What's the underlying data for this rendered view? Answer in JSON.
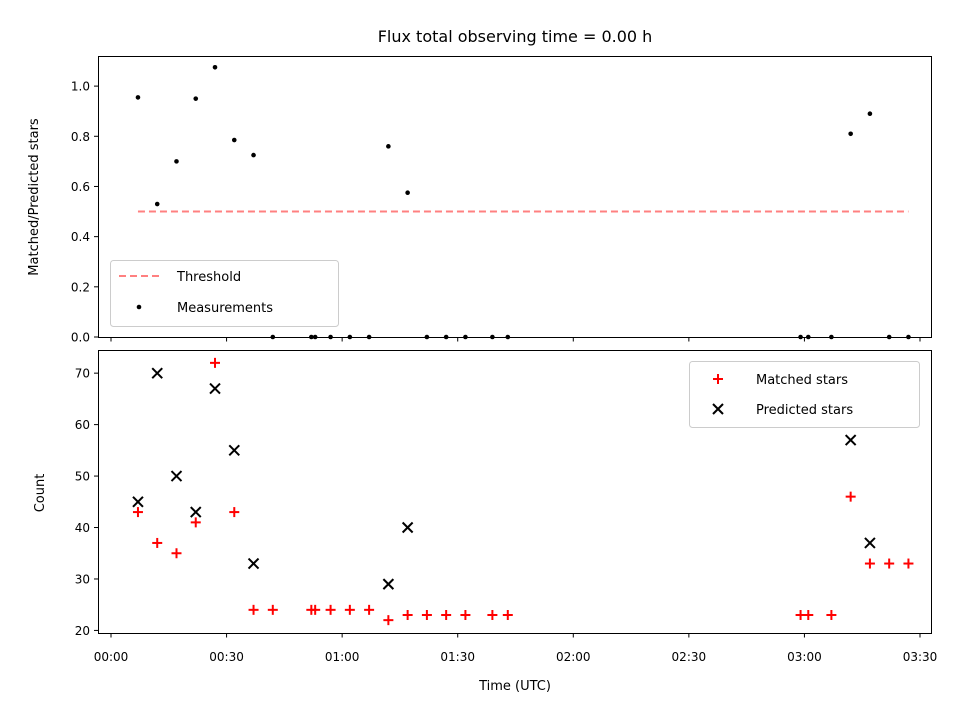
{
  "chart_data": [
    {
      "type": "scatter",
      "title": "Flux total observing time = 0.00 h",
      "xlabel": "",
      "ylabel": "Matched/Predicted stars",
      "xlim": [
        "00:00",
        "03:30"
      ],
      "ylim": [
        0,
        1.12
      ],
      "grid": false,
      "legend_position": "lower-left",
      "threshold": {
        "name": "Threshold",
        "value": 0.5,
        "x": [
          "00:07",
          "03:27"
        ],
        "color": "#ff8080",
        "style": "dashed"
      },
      "series": [
        {
          "name": "Measurements",
          "color": "#000000",
          "marker": "dot",
          "x": [
            "00:07",
            "00:12",
            "00:17",
            "00:22",
            "00:27",
            "00:32",
            "00:37",
            "00:42",
            "00:52",
            "00:53",
            "00:57",
            "01:02",
            "01:07",
            "01:12",
            "01:17",
            "01:22",
            "01:27",
            "01:32",
            "01:39",
            "01:43",
            "02:59",
            "03:01",
            "03:07",
            "03:12",
            "03:17",
            "03:22",
            "03:27"
          ],
          "y": [
            0.955,
            0.53,
            0.7,
            0.95,
            1.075,
            0.785,
            0.725,
            0.0,
            0.0,
            0.0,
            0.0,
            0.0,
            0.0,
            0.76,
            0.575,
            0.0,
            0.0,
            0.0,
            0.0,
            0.0,
            0.0,
            0.0,
            0.0,
            0.81,
            0.89,
            0.0,
            0.0
          ]
        }
      ]
    },
    {
      "type": "scatter",
      "title": "",
      "xlabel": "Time (UTC)",
      "ylabel": "Count",
      "xlim": [
        "00:00",
        "03:30"
      ],
      "ylim": [
        19.5,
        74.5
      ],
      "grid": false,
      "legend_position": "top-right",
      "series": [
        {
          "name": "Matched stars",
          "color": "#ff0000",
          "marker": "plus",
          "x": [
            "00:07",
            "00:12",
            "00:17",
            "00:22",
            "00:27",
            "00:32",
            "00:37",
            "00:42",
            "00:52",
            "00:53",
            "00:57",
            "01:02",
            "01:07",
            "01:12",
            "01:17",
            "01:22",
            "01:27",
            "01:32",
            "01:39",
            "01:43",
            "02:59",
            "03:01",
            "03:07",
            "03:12",
            "03:17",
            "03:22",
            "03:27"
          ],
          "y": [
            43,
            37,
            35,
            41,
            72,
            43,
            24,
            24,
            24,
            24,
            24,
            24,
            24,
            22,
            23,
            23,
            23,
            23,
            23,
            23,
            23,
            23,
            23,
            46,
            33,
            33,
            33
          ]
        },
        {
          "name": "Predicted stars",
          "color": "#000000",
          "marker": "x",
          "x": [
            "00:07",
            "00:12",
            "00:17",
            "00:22",
            "00:27",
            "00:32",
            "00:37",
            "01:12",
            "01:17",
            "03:12",
            "03:17"
          ],
          "y": [
            45,
            70,
            50,
            43,
            67,
            55,
            33,
            29,
            40,
            57,
            37
          ]
        }
      ]
    }
  ],
  "x_tick_labels": [
    "00:00",
    "00:30",
    "01:00",
    "01:30",
    "02:00",
    "02:30",
    "03:00",
    "03:30"
  ],
  "top_y_tick_labels": [
    "0.0",
    "0.2",
    "0.4",
    "0.6",
    "0.8",
    "1.0"
  ],
  "bottom_y_tick_labels": [
    "20",
    "30",
    "40",
    "50",
    "60",
    "70"
  ]
}
